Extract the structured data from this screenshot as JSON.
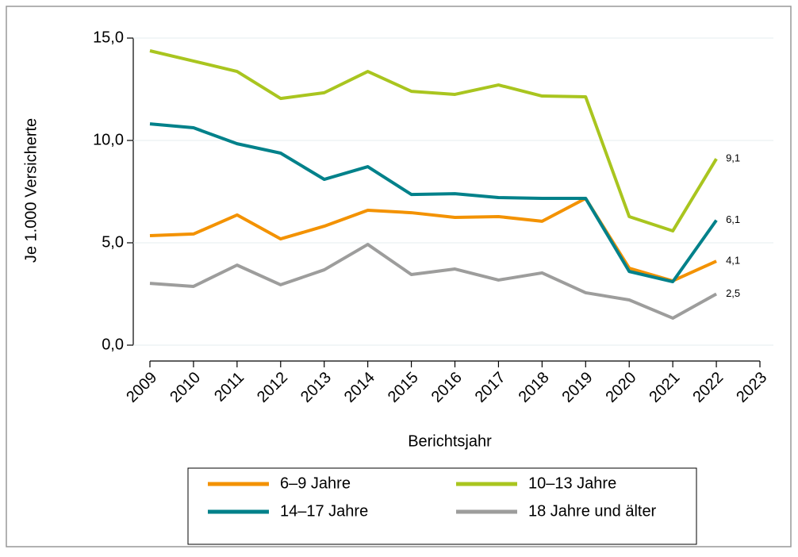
{
  "chart_data": {
    "type": "line",
    "y_label": "Je 1.000 Versicherte",
    "x_label": "Berichtsjahr",
    "x": [
      2009,
      2010,
      2011,
      2012,
      2013,
      2014,
      2015,
      2016,
      2017,
      2018,
      2019,
      2020,
      2021,
      2022
    ],
    "xlim": [
      2009,
      2023
    ],
    "xticks": [
      2009,
      2010,
      2011,
      2012,
      2013,
      2014,
      2015,
      2016,
      2017,
      2018,
      2019,
      2020,
      2021,
      2022,
      2023
    ],
    "ylim": [
      0,
      15
    ],
    "yticks": [
      {
        "value": 0,
        "label": "0,0"
      },
      {
        "value": 5,
        "label": "5,0"
      },
      {
        "value": 10,
        "label": "10,0"
      },
      {
        "value": 15,
        "label": "15,0"
      }
    ],
    "grid": true,
    "legend": "bottom",
    "series": [
      {
        "name": "6–9 Jahre",
        "color": "#f39200",
        "values": [
          5.35,
          5.43,
          6.36,
          5.19,
          5.81,
          6.59,
          6.47,
          6.24,
          6.28,
          6.05,
          7.17,
          3.76,
          3.14,
          4.1
        ],
        "value_labels": [
          null,
          null,
          null,
          null,
          null,
          null,
          null,
          null,
          null,
          null,
          null,
          null,
          null,
          "4,1"
        ]
      },
      {
        "name": "10–13 Jahre",
        "color": "#a9c51f",
        "values": [
          14.38,
          13.88,
          13.37,
          12.05,
          12.33,
          13.37,
          12.4,
          12.25,
          12.71,
          12.17,
          12.13,
          6.28,
          5.58,
          9.1
        ],
        "value_labels": [
          null,
          null,
          null,
          null,
          null,
          null,
          null,
          null,
          null,
          null,
          null,
          null,
          null,
          "9,1"
        ]
      },
      {
        "name": "14–17 Jahre",
        "color": "#00818a",
        "values": [
          10.81,
          10.62,
          9.84,
          9.38,
          8.1,
          8.72,
          7.36,
          7.4,
          7.21,
          7.17,
          7.17,
          3.6,
          3.1,
          6.1
        ],
        "value_labels": [
          null,
          null,
          null,
          null,
          null,
          null,
          null,
          null,
          null,
          null,
          null,
          null,
          null,
          "6,1"
        ]
      },
      {
        "name": "18 Jahre und älter",
        "color": "#9d9d9c",
        "values": [
          3.02,
          2.87,
          3.91,
          2.95,
          3.68,
          4.92,
          3.45,
          3.72,
          3.18,
          3.53,
          2.56,
          2.21,
          1.32,
          2.5
        ],
        "value_labels": [
          null,
          null,
          null,
          null,
          null,
          null,
          null,
          null,
          null,
          null,
          null,
          null,
          null,
          "2,5"
        ]
      }
    ]
  }
}
